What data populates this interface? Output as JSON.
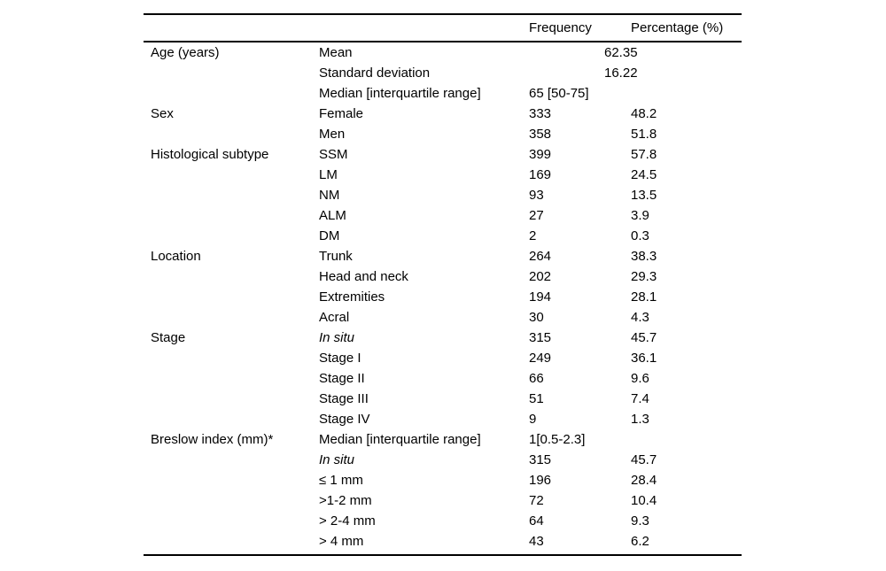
{
  "table": {
    "headers": {
      "frequency": "Frequency",
      "percentage": "Percentage (%)"
    },
    "rows": [
      {
        "category": "Age (years)",
        "label": "Mean",
        "merged_value": "62.35"
      },
      {
        "category": "",
        "label": "Standard deviation",
        "merged_value": "16.22"
      },
      {
        "category": "",
        "label": "Median [interquartile range]",
        "frequency": "65 [50-75]",
        "percentage": ""
      },
      {
        "category": "Sex",
        "label": "Female",
        "frequency": "333",
        "percentage": "48.2"
      },
      {
        "category": "",
        "label": "Men",
        "frequency": "358",
        "percentage": "51.8"
      },
      {
        "category": "Histological subtype",
        "label": "SSM",
        "frequency": "399",
        "percentage": "57.8"
      },
      {
        "category": "",
        "label": "LM",
        "frequency": "169",
        "percentage": "24.5"
      },
      {
        "category": "",
        "label": "NM",
        "frequency": "93",
        "percentage": "13.5"
      },
      {
        "category": "",
        "label": "ALM",
        "frequency": "27",
        "percentage": "3.9"
      },
      {
        "category": "",
        "label": "DM",
        "frequency": "2",
        "percentage": "0.3"
      },
      {
        "category": "Location",
        "label": "Trunk",
        "frequency": "264",
        "percentage": "38.3"
      },
      {
        "category": "",
        "label": "Head and neck",
        "frequency": "202",
        "percentage": "29.3"
      },
      {
        "category": "",
        "label": "Extremities",
        "frequency": "194",
        "percentage": "28.1"
      },
      {
        "category": "",
        "label": "Acral",
        "frequency": "30",
        "percentage": "4.3"
      },
      {
        "category": "Stage",
        "label": "In situ",
        "italic": true,
        "frequency": "315",
        "percentage": "45.7"
      },
      {
        "category": "",
        "label": "Stage I",
        "frequency": "249",
        "percentage": "36.1"
      },
      {
        "category": "",
        "label": "Stage II",
        "frequency": "66",
        "percentage": "9.6"
      },
      {
        "category": "",
        "label": "Stage III",
        "frequency": "51",
        "percentage": "7.4"
      },
      {
        "category": "",
        "label": "Stage IV",
        "frequency": "9",
        "percentage": "1.3"
      },
      {
        "category": "Breslow index (mm)*",
        "label": "Median [interquartile range]",
        "frequency": "1[0.5-2.3]",
        "percentage": ""
      },
      {
        "category": "",
        "label": "In situ",
        "italic": true,
        "frequency": "315",
        "percentage": "45.7"
      },
      {
        "category": "",
        "label": "≤ 1 mm",
        "frequency": "196",
        "percentage": "28.4"
      },
      {
        "category": "",
        "label": ">1-2 mm",
        "frequency": "72",
        "percentage": "10.4"
      },
      {
        "category": "",
        "label": "> 2-4 mm",
        "frequency": "64",
        "percentage": "9.3"
      },
      {
        "category": "",
        "label": "> 4 mm",
        "frequency": "43",
        "percentage": "6.2"
      }
    ]
  }
}
